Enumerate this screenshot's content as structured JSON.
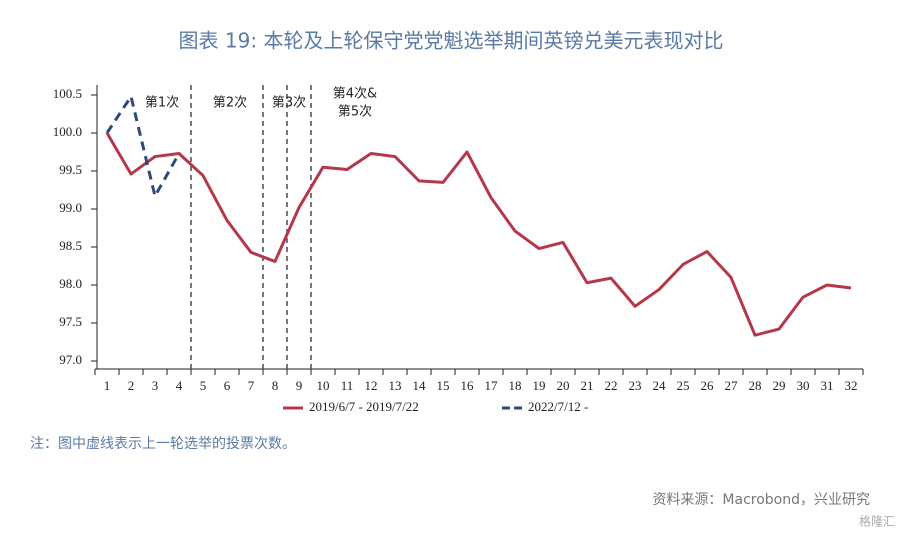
{
  "chart_data": {
    "type": "line",
    "title": "图表 19:   本轮及上轮保守党党魁选举期间英镑兑美元表现对比",
    "categories": [
      "1",
      "2",
      "3",
      "4",
      "5",
      "6",
      "7",
      "8",
      "9",
      "10",
      "11",
      "12",
      "13",
      "14",
      "15",
      "16",
      "17",
      "18",
      "19",
      "20",
      "21",
      "22",
      "23",
      "24",
      "25",
      "26",
      "27",
      "28",
      "29",
      "30",
      "31",
      "32"
    ],
    "series": [
      {
        "name": "2019/6/7 - 2019/7/22",
        "color": "#b5384a",
        "dashed": false,
        "values": [
          100.0,
          99.46,
          99.69,
          99.73,
          99.44,
          98.85,
          98.43,
          98.31,
          99.02,
          99.55,
          99.52,
          99.73,
          99.69,
          99.37,
          99.35,
          99.75,
          99.15,
          98.71,
          98.48,
          98.56,
          98.03,
          98.09,
          97.72,
          97.94,
          98.27,
          98.44,
          98.1,
          97.34,
          97.42,
          97.84,
          98.0,
          97.96
        ]
      },
      {
        "name": "2022/7/12 -",
        "color": "#2e4a78",
        "dashed": true,
        "values": [
          100.0,
          100.48,
          99.17,
          99.73,
          null,
          null,
          null,
          null,
          null,
          null,
          null,
          null,
          null,
          null,
          null,
          null,
          null,
          null,
          null,
          null,
          null,
          null,
          null,
          null,
          null,
          null,
          null,
          null,
          null,
          null,
          null,
          null
        ]
      }
    ],
    "ylim": [
      97.0,
      100.5
    ],
    "yticks": [
      {
        "value": 97,
        "label": "97.0"
      },
      97.5,
      {
        "value": 98,
        "label": "98.0"
      },
      98.5,
      {
        "value": 99,
        "label": "99.0"
      },
      99.5,
      {
        "value": 100,
        "label": "100.0"
      },
      100.5
    ],
    "vlines": [
      4.5,
      7.5,
      8.5,
      9.5
    ],
    "annotations": [
      "第1次",
      "第2次",
      "第3次",
      "第4次&",
      "第5次"
    ],
    "note": "注：图中虚线表示上一轮选举的投票次数。",
    "source": "资料来源：Macrobond，兴业研究",
    "watermark": "格隆汇"
  }
}
